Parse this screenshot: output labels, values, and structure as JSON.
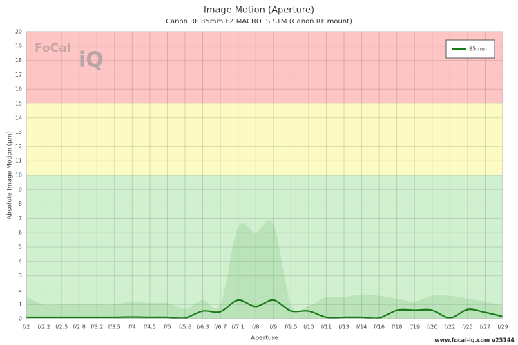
{
  "chart_data": {
    "type": "line",
    "title": "Image Motion (Aperture)",
    "subtitle": "Canon RF 85mm F2 MACRO IS STM (Canon RF mount)",
    "x_label": "Aperture",
    "y_label": "Absolute Image Motion (µm)",
    "logo": [
      "FoCal",
      "iQ"
    ],
    "footer": "www.focal-iq.com  v25144",
    "categories": [
      "f/2",
      "f/2.2",
      "f/2.5",
      "f/2.8",
      "f/3.2",
      "f/3.5",
      "f/4",
      "f/4.5",
      "f/5",
      "f/5.6",
      "f/6.3",
      "f/6.7",
      "f/7.1",
      "f/8",
      "f/9",
      "f/9.5",
      "f/10",
      "f/11",
      "f/13",
      "f/14",
      "f/16",
      "f/18",
      "f/19",
      "f/20",
      "f/22",
      "f/25",
      "f/27",
      "f/29"
    ],
    "series": [
      {
        "name": "85mm",
        "color": "#1a7a1a",
        "values": [
          0.1,
          0.1,
          0.1,
          0.1,
          0.1,
          0.1,
          0.12,
          0.1,
          0.1,
          0.05,
          0.55,
          0.5,
          1.3,
          0.85,
          1.3,
          0.55,
          0.55,
          0.1,
          0.1,
          0.1,
          0.05,
          0.6,
          0.6,
          0.6,
          0.05,
          0.65,
          0.45,
          0.15
        ],
        "range_upper": [
          1.5,
          1.0,
          1.0,
          1.0,
          1.0,
          1.0,
          1.2,
          1.1,
          1.1,
          0.7,
          1.3,
          1.0,
          6.4,
          6.0,
          6.6,
          1.0,
          0.9,
          1.5,
          1.5,
          1.7,
          1.6,
          1.4,
          1.2,
          1.6,
          1.6,
          1.4,
          1.2,
          0.9
        ]
      }
    ],
    "zones": [
      {
        "from": 0,
        "to": 10,
        "color": "#d0f0cf"
      },
      {
        "from": 10,
        "to": 15,
        "color": "#fdfbc4"
      },
      {
        "from": 15,
        "to": 20,
        "color": "#fec5c5"
      }
    ],
    "ylim": [
      0,
      20
    ],
    "yticks": [
      0,
      1,
      2,
      3,
      4,
      5,
      6,
      7,
      8,
      9,
      10,
      11,
      12,
      13,
      14,
      15,
      16,
      17,
      18,
      19,
      20
    ],
    "grid": true,
    "legend_position": "top-right"
  }
}
